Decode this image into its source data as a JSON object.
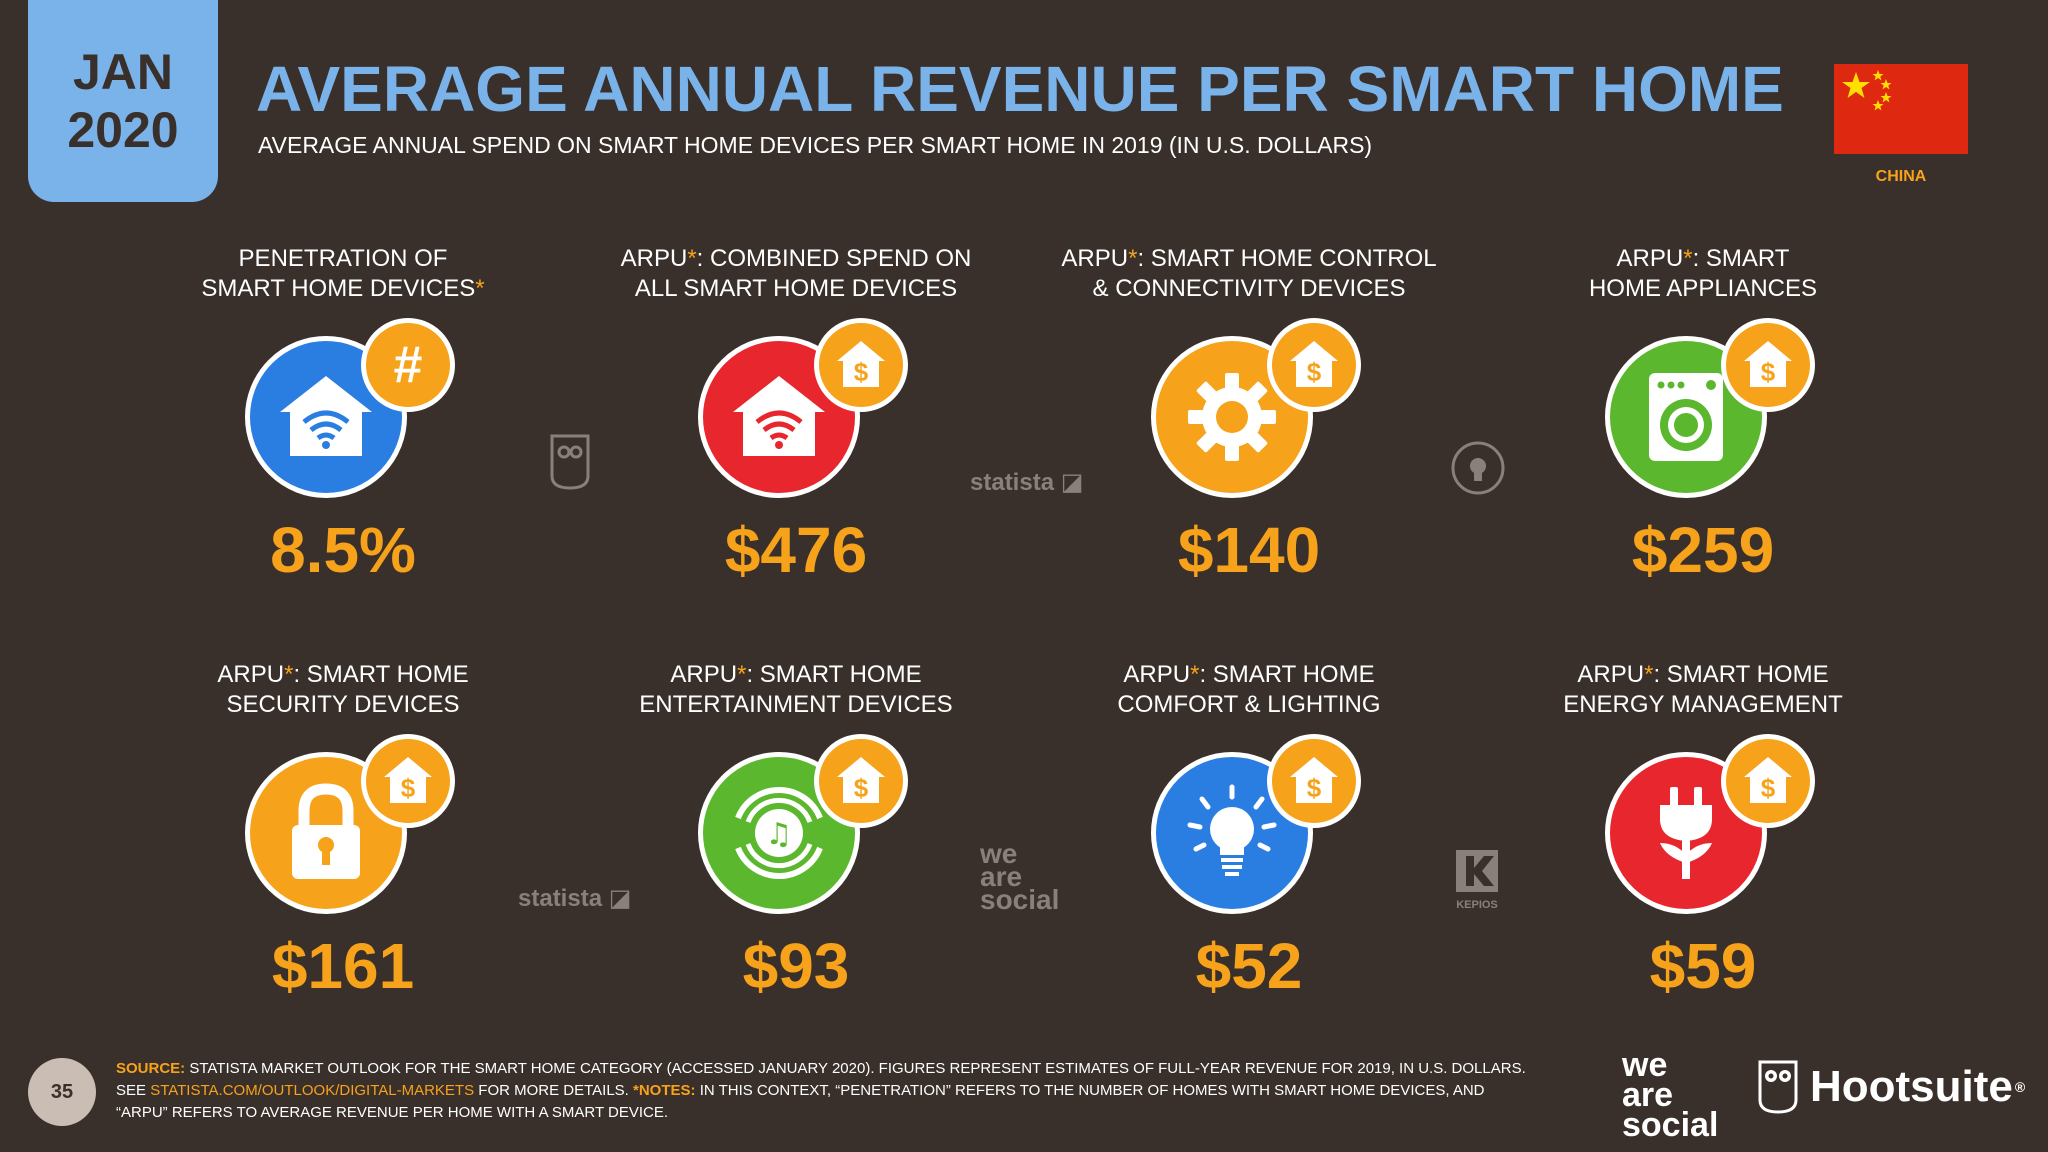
{
  "header": {
    "date_month": "JAN",
    "date_year": "2020",
    "title": "AVERAGE ANNUAL REVENUE PER SMART HOME",
    "subtitle": "AVERAGE ANNUAL SPEND ON SMART HOME DEVICES PER SMART HOME IN 2019 (IN U.S. DOLLARS)",
    "country": "CHINA"
  },
  "colors": {
    "background": "#3a302b",
    "accent_blue": "#7ab3ea",
    "accent_orange": "#f7a21b",
    "flag_red": "#de2910"
  },
  "tiles": [
    {
      "label_line1": "PENETRATION OF",
      "label_line2": "SMART HOME DEVICES",
      "value": "8.5%",
      "icon": "wifi-home-icon",
      "badge": "hash-icon"
    },
    {
      "label_line1_prefix": "ARPU",
      "label_line1_suffix": ": COMBINED SPEND ON",
      "label_line2": "ALL SMART HOME DEVICES",
      "value": "$476",
      "icon": "wifi-home-icon",
      "badge": "dollar-home-icon"
    },
    {
      "label_line1_prefix": "ARPU",
      "label_line1_suffix": ": SMART HOME CONTROL",
      "label_line2": "& CONNECTIVITY DEVICES",
      "value": "$140",
      "icon": "gear-icon",
      "badge": "dollar-home-icon"
    },
    {
      "label_line1_prefix": "ARPU",
      "label_line1_suffix": ": SMART",
      "label_line2": "HOME APPLIANCES",
      "value": "$259",
      "icon": "washing-machine-icon",
      "badge": "dollar-home-icon"
    },
    {
      "label_line1_prefix": "ARPU",
      "label_line1_suffix": ": SMART HOME",
      "label_line2": "SECURITY DEVICES",
      "value": "$161",
      "icon": "padlock-icon",
      "badge": "dollar-home-icon"
    },
    {
      "label_line1_prefix": "ARPU",
      "label_line1_suffix": ": SMART HOME",
      "label_line2": "ENTERTAINMENT DEVICES",
      "value": "$93",
      "icon": "speaker-icon",
      "badge": "dollar-home-icon"
    },
    {
      "label_line1_prefix": "ARPU",
      "label_line1_suffix": ": SMART HOME",
      "label_line2": "COMFORT & LIGHTING",
      "value": "$52",
      "icon": "light-bulb-icon",
      "badge": "dollar-home-icon"
    },
    {
      "label_line1_prefix": "ARPU",
      "label_line1_suffix": ": SMART HOME",
      "label_line2": "ENERGY MANAGEMENT",
      "value": "$59",
      "icon": "plug-icon",
      "badge": "dollar-home-icon"
    }
  ],
  "watermarks": {
    "statista": "statista",
    "was_we": "we",
    "was_are": "are",
    "was_social": "social",
    "kepios": "KEPIOS"
  },
  "footer": {
    "page_number": "35",
    "source_label": "SOURCE:",
    "source_text": " STATISTA MARKET OUTLOOK FOR THE SMART HOME CATEGORY (ACCESSED JANUARY 2020). FIGURES REPRESENT ESTIMATES OF FULL-YEAR REVENUE FOR 2019, IN U.S. DOLLARS.",
    "see_text": "SEE ",
    "link_text": "STATISTA.COM/OUTLOOK/DIGITAL-MARKETS",
    "more_details": " FOR MORE DETAILS. ",
    "notes_label": "*NOTES:",
    "notes_text": " IN THIS CONTEXT, “PENETRATION” REFERS TO THE NUMBER OF HOMES WITH SMART HOME DEVICES, AND",
    "notes_text2": "“ARPU” REFERS TO AVERAGE REVENUE PER HOME WITH A SMART DEVICE.",
    "logo_was_we": "we",
    "logo_was_are": "are",
    "logo_was_social": "social",
    "logo_hootsuite": "Hootsuite"
  }
}
